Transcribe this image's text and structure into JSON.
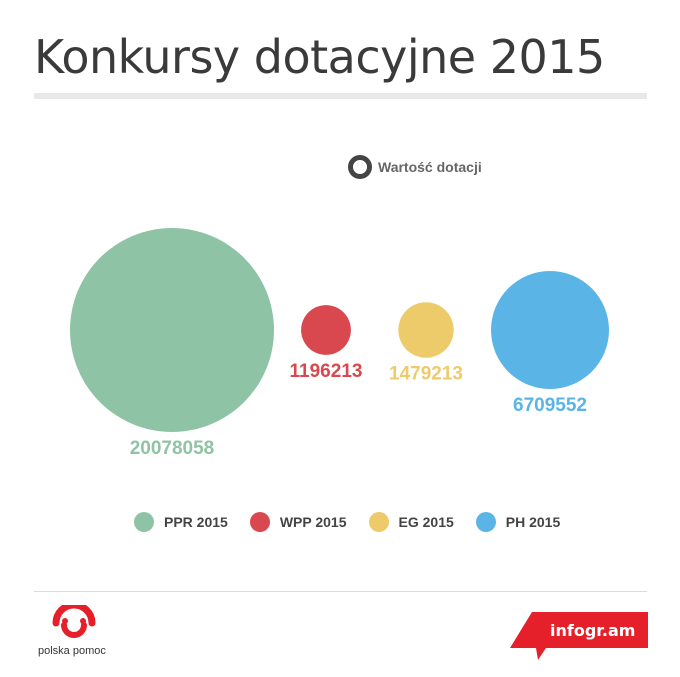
{
  "header": {
    "title": "Konkursy dotacyjne 2015"
  },
  "size_legend": {
    "label": "Wartość dotacji"
  },
  "chart_data": {
    "type": "bubble",
    "title": "Konkursy dotacyjne 2015",
    "size_label": "Wartość dotacji",
    "categories": [
      "PPR 2015",
      "WPP 2015",
      "EG 2015",
      "PH 2015"
    ],
    "values": [
      20078058,
      1196213,
      1479213,
      6709552
    ],
    "colors": [
      "#8fc3a6",
      "#d9484e",
      "#eecb6a",
      "#5ab5e6"
    ],
    "legend": "bottom"
  },
  "legend_items": [
    {
      "label": "PPR 2015",
      "color": "#8fc3a6"
    },
    {
      "label": "WPP 2015",
      "color": "#d9484e"
    },
    {
      "label": "EG 2015",
      "color": "#eecb6a"
    },
    {
      "label": "PH 2015",
      "color": "#5ab5e6"
    }
  ],
  "footer": {
    "logo_text": "polska pomoc",
    "brand": "infogr.am",
    "brand_color": "#e5202b"
  }
}
